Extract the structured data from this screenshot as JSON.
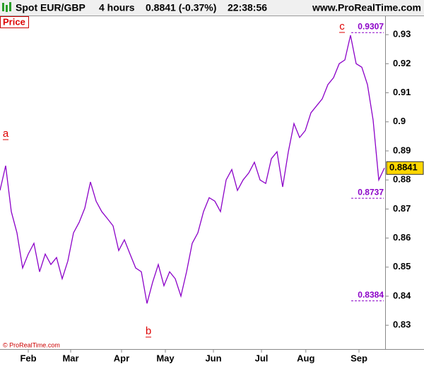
{
  "header": {
    "symbol": "Spot EUR/GBP",
    "period": "4 hours",
    "quote": "0.8841 (-0.37%)",
    "time": "22:38:56",
    "site": "www.ProRealTime.com"
  },
  "footer": "© ProRealTime.com",
  "chart_data": {
    "type": "line",
    "series": [
      {
        "name": "Price",
        "color": "#8b00c8",
        "values": [
          0.8764,
          0.8849,
          0.8691,
          0.8618,
          0.8497,
          0.8545,
          0.8582,
          0.8484,
          0.8545,
          0.8509,
          0.8533,
          0.846,
          0.8521,
          0.8618,
          0.8654,
          0.8703,
          0.8793,
          0.8727,
          0.8691,
          0.8667,
          0.8642,
          0.8557,
          0.8594,
          0.8545,
          0.8497,
          0.8484,
          0.8375,
          0.8448,
          0.8509,
          0.8436,
          0.8484,
          0.846,
          0.84,
          0.8484,
          0.8582,
          0.8618,
          0.8691,
          0.8739,
          0.8727,
          0.8691,
          0.88,
          0.8836,
          0.8764,
          0.88,
          0.8824,
          0.8861,
          0.88,
          0.8788,
          0.8873,
          0.8897,
          0.8776,
          0.8897,
          0.8994,
          0.8946,
          0.897,
          0.9031,
          0.9055,
          0.9079,
          0.9128,
          0.9152,
          0.92,
          0.9213,
          0.9298,
          0.92,
          0.9188,
          0.9128,
          0.9006,
          0.88,
          0.8841
        ]
      }
    ],
    "last_price": 0.8841,
    "xlim": [
      0,
      68
    ],
    "xticks": [
      {
        "value": 5,
        "label": "Feb"
      },
      {
        "value": 12.5,
        "label": "Mar"
      },
      {
        "value": 21.5,
        "label": "Apr"
      },
      {
        "value": 29.25,
        "label": "May"
      },
      {
        "value": 37.75,
        "label": "Jun"
      },
      {
        "value": 46.25,
        "label": "Jul"
      },
      {
        "value": 54.1,
        "label": "Aug"
      },
      {
        "value": 63.5,
        "label": "Sep"
      }
    ],
    "ylim": [
      0.8218,
      0.9361
    ],
    "yticks": [
      0.83,
      0.84,
      0.85,
      0.86,
      0.87,
      0.88,
      0.89,
      0.9,
      0.91,
      0.92,
      0.93
    ],
    "levels": [
      0.9307,
      0.8737,
      0.8384
    ],
    "annotations": [
      "a",
      "b",
      "c"
    ]
  }
}
